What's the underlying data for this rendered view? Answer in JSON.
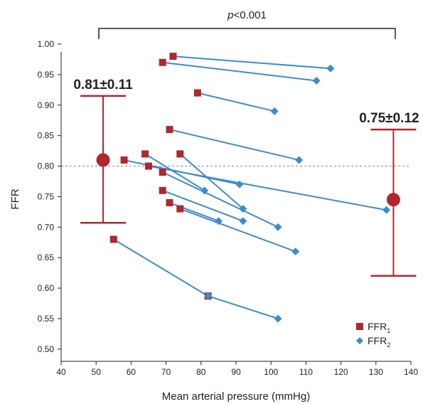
{
  "chart_data": {
    "type": "scatter",
    "title": "",
    "xlabel": "Mean arterial pressure (mmHg)",
    "ylabel": "FFR",
    "xlim": [
      40,
      140
    ],
    "ylim": [
      0.48,
      1.0
    ],
    "x_ticks": [
      "40",
      "50",
      "60",
      "70",
      "80",
      "90",
      "100",
      "110",
      "120",
      "130",
      "140"
    ],
    "y_ticks": [
      "0.50",
      "0.55",
      "0.60",
      "0.65",
      "0.70",
      "0.75",
      "0.80",
      "0.85",
      "0.90",
      "0.95",
      "1.00"
    ],
    "reference_line_y": 0.8,
    "grid": false,
    "legend_position": "bottom-right",
    "significance": {
      "p_prefix": "p",
      "p_suffix": "<0.001"
    },
    "legend": [
      {
        "name": "FFR",
        "sub": "1",
        "marker": "square",
        "color": "#b0272f"
      },
      {
        "name": "FFR",
        "sub": "2",
        "marker": "diamond",
        "color": "#3d8ccc"
      }
    ],
    "summary": [
      {
        "label": "0.81±0.11",
        "x": 52,
        "mean": 0.81,
        "low": 0.707,
        "high": 0.915
      },
      {
        "label": "0.75±0.12",
        "x": 135,
        "mean": 0.745,
        "low": 0.62,
        "high": 0.86
      }
    ],
    "pairs": [
      {
        "ffr1": [
          72,
          0.98
        ],
        "ffr2": [
          117,
          0.96
        ]
      },
      {
        "ffr1": [
          69,
          0.97
        ],
        "ffr2": [
          113,
          0.94
        ]
      },
      {
        "ffr1": [
          79,
          0.92
        ],
        "ffr2": [
          101,
          0.89
        ]
      },
      {
        "ffr1": [
          71,
          0.86
        ],
        "ffr2": [
          108,
          0.81
        ]
      },
      {
        "ffr1": [
          74,
          0.82
        ],
        "ffr2": [
          92,
          0.73
        ]
      },
      {
        "ffr1": [
          58,
          0.81
        ],
        "ffr2": [
          91,
          0.77
        ]
      },
      {
        "ffr1": [
          64,
          0.82
        ],
        "ffr2": [
          81,
          0.76
        ]
      },
      {
        "ffr1": [
          65,
          0.8
        ],
        "ffr2": [
          133,
          0.728
        ]
      },
      {
        "ffr1": [
          69,
          0.79
        ],
        "ffr2": [
          102,
          0.7
        ]
      },
      {
        "ffr1": [
          69,
          0.76
        ],
        "ffr2": [
          92,
          0.71
        ]
      },
      {
        "ffr1": [
          71,
          0.74
        ],
        "ffr2": [
          85,
          0.71
        ]
      },
      {
        "ffr1": [
          74,
          0.73
        ],
        "ffr2": [
          107,
          0.66
        ]
      },
      {
        "ffr1": [
          55,
          0.68
        ],
        "ffr2": [
          82,
          0.587
        ]
      },
      {
        "ffr1": [
          82,
          0.587
        ],
        "ffr2": [
          102,
          0.55
        ]
      }
    ],
    "colors": {
      "ffr1": "#b0272f",
      "ffr2": "#3d8ccc",
      "line": "#3d8ccc",
      "summary": "#b0272f",
      "axis": "#222222",
      "reference": "#888888"
    }
  }
}
